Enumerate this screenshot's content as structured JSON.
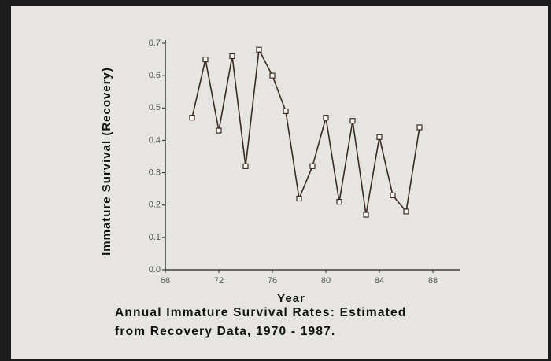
{
  "chart_data": {
    "type": "line",
    "caption": [
      "Annual Immature Survival Rates: Estimated",
      "from Recovery Data, 1970 - 1987."
    ],
    "x_label": "Year",
    "y_label": "Immature Survival (Recovery)",
    "x": [
      70,
      71,
      72,
      73,
      74,
      75,
      76,
      77,
      78,
      79,
      80,
      81,
      82,
      83,
      84,
      85,
      86,
      87
    ],
    "values": [
      0.47,
      0.65,
      0.43,
      0.66,
      0.32,
      0.68,
      0.6,
      0.49,
      0.22,
      0.32,
      0.47,
      0.21,
      0.46,
      0.17,
      0.41,
      0.23,
      0.18,
      0.44
    ],
    "color": "#3a2a22",
    "xlim": [
      68,
      90
    ],
    "xticks": [
      68,
      72,
      76,
      80,
      84,
      88
    ],
    "ylim": [
      0,
      0.7
    ],
    "yticks": [
      {
        "value": 0,
        "label": "0.0"
      },
      0.1,
      0.2,
      0.3,
      0.4,
      0.5,
      0.6,
      0.7
    ],
    "grid": false
  }
}
